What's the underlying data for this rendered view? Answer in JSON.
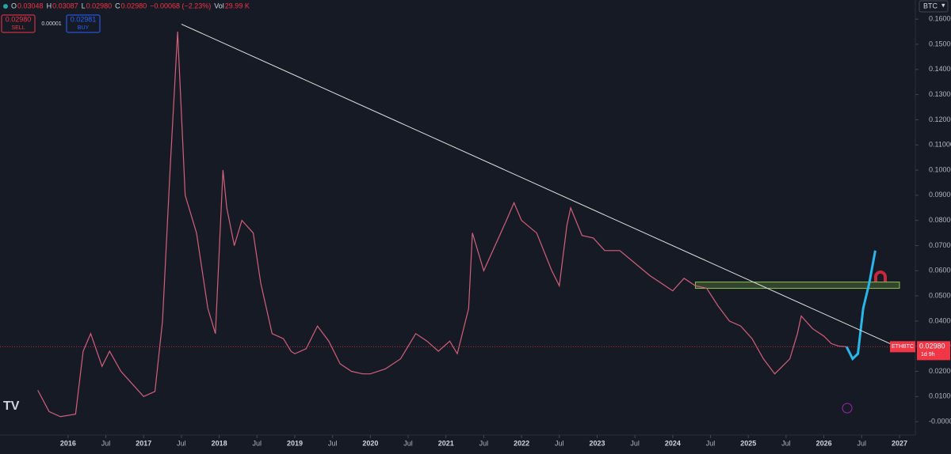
{
  "header": {
    "ohlc": [
      {
        "label": "O",
        "value": "0.03048"
      },
      {
        "label": "H",
        "value": "0.03087"
      },
      {
        "label": "L",
        "value": "0.02980"
      },
      {
        "label": "C",
        "value": "0.02980"
      }
    ],
    "change": "−0.00068 (−2.23%)",
    "vol_label": "Vol",
    "vol": "29.99 K"
  },
  "trade": {
    "sell_price": "0.02980",
    "sell": "SELL",
    "spread": "0.00001",
    "buy_price": "0.02981",
    "buy": "BUY"
  },
  "currency": "BTC",
  "chart_data": {
    "type": "line",
    "x": [
      2015.6,
      2015.75,
      2015.9,
      2016.1,
      2016.2,
      2016.3,
      2016.45,
      2016.55,
      2016.7,
      2016.85,
      2017.0,
      2017.15,
      2017.25,
      2017.35,
      2017.45,
      2017.55,
      2017.7,
      2017.85,
      2017.95,
      2018.05,
      2018.1,
      2018.2,
      2018.3,
      2018.45,
      2018.55,
      2018.7,
      2018.85,
      2018.95,
      2019.0,
      2019.15,
      2019.3,
      2019.45,
      2019.6,
      2019.75,
      2019.9,
      2020.0,
      2020.2,
      2020.4,
      2020.6,
      2020.75,
      2020.9,
      2021.05,
      2021.15,
      2021.3,
      2021.35,
      2021.5,
      2021.65,
      2021.8,
      2021.9,
      2022.0,
      2022.2,
      2022.4,
      2022.5,
      2022.6,
      2022.65,
      2022.8,
      2022.95,
      2023.1,
      2023.3,
      2023.5,
      2023.7,
      2023.85,
      2024.0,
      2024.15,
      2024.3,
      2024.45,
      2024.6,
      2024.75,
      2024.9,
      2025.05,
      2025.2,
      2025.35,
      2025.45,
      2025.55,
      2025.65,
      2025.7,
      2025.85,
      2026.0,
      2026.1,
      2026.2,
      2026.3
    ],
    "values": [
      0.0125,
      0.004,
      0.002,
      0.003,
      0.028,
      0.035,
      0.022,
      0.028,
      0.02,
      0.015,
      0.01,
      0.012,
      0.04,
      0.1,
      0.155,
      0.09,
      0.075,
      0.045,
      0.035,
      0.1,
      0.085,
      0.07,
      0.08,
      0.075,
      0.055,
      0.035,
      0.033,
      0.028,
      0.027,
      0.029,
      0.038,
      0.032,
      0.023,
      0.02,
      0.019,
      0.019,
      0.021,
      0.025,
      0.035,
      0.032,
      0.028,
      0.032,
      0.027,
      0.045,
      0.075,
      0.06,
      0.07,
      0.08,
      0.087,
      0.08,
      0.075,
      0.06,
      0.054,
      0.078,
      0.085,
      0.074,
      0.073,
      0.068,
      0.068,
      0.063,
      0.058,
      0.055,
      0.052,
      0.057,
      0.054,
      0.053,
      0.046,
      0.04,
      0.038,
      0.033,
      0.025,
      0.019,
      0.022,
      0.025,
      0.035,
      0.042,
      0.037,
      0.034,
      0.031,
      0.03,
      0.0298
    ],
    "color": "#d2607a",
    "projection": {
      "x": [
        2026.3,
        2026.38,
        2026.45,
        2026.52,
        2026.6,
        2026.68
      ],
      "values": [
        0.0298,
        0.025,
        0.027,
        0.045,
        0.055,
        0.068
      ],
      "color": "#29b6e8"
    },
    "trendline": {
      "x": [
        2017.5,
        2026.95
      ],
      "values": [
        0.158,
        0.03
      ],
      "color": "#e6e6e6"
    },
    "zone": {
      "x": [
        2024.3,
        2027.0
      ],
      "values": [
        0.053,
        0.0555
      ],
      "color": "#8bc34a"
    },
    "last_price": {
      "symbol": "ETHBTC",
      "value": 0.0298,
      "value_label": "0.02980",
      "countdown": "1d 9h"
    },
    "xlim": [
      2015.1,
      2027.21
    ],
    "xticks": [
      2016,
      {
        "value": 2016.5,
        "label": "Jul"
      },
      2017,
      {
        "value": 2017.5,
        "label": "Jul"
      },
      2018,
      {
        "value": 2018.5,
        "label": "Jul"
      },
      2019,
      {
        "value": 2019.5,
        "label": "Jul"
      },
      2020,
      {
        "value": 2020.5,
        "label": "Jul"
      },
      2021,
      {
        "value": 2021.5,
        "label": "Jul"
      },
      2022,
      {
        "value": 2022.5,
        "label": "Jul"
      },
      2023,
      {
        "value": 2023.5,
        "label": "Jul"
      },
      2024,
      {
        "value": 2024.5,
        "label": "Jul"
      },
      2025,
      {
        "value": 2025.5,
        "label": "Jul"
      },
      2026,
      {
        "value": 2026.5,
        "label": "Jul"
      },
      2027
    ],
    "ylim": [
      -0.0053,
      0.1676
    ],
    "yticks": [
      {
        "value": 0.16,
        "label": "0.16000"
      },
      {
        "value": 0.15,
        "label": "0.15000"
      },
      {
        "value": 0.14,
        "label": "0.14000"
      },
      {
        "value": 0.13,
        "label": "0.13000"
      },
      {
        "value": 0.12,
        "label": "0.12000"
      },
      {
        "value": 0.11,
        "label": "0.11000"
      },
      {
        "value": 0.1,
        "label": "0.10000"
      },
      {
        "value": 0.09,
        "label": "0.09000"
      },
      {
        "value": 0.08,
        "label": "0.08000"
      },
      {
        "value": 0.07,
        "label": "0.07000"
      },
      {
        "value": 0.06,
        "label": "0.06000"
      },
      {
        "value": 0.05,
        "label": "0.05000"
      },
      {
        "value": 0.04,
        "label": "0.04000"
      },
      {
        "value": 0.03,
        "label": "0.03000"
      },
      {
        "value": 0.02,
        "label": "0.02000"
      },
      {
        "value": 0.01,
        "label": "0.01000"
      },
      {
        "value": 0,
        "label": "-0.00000"
      }
    ]
  }
}
